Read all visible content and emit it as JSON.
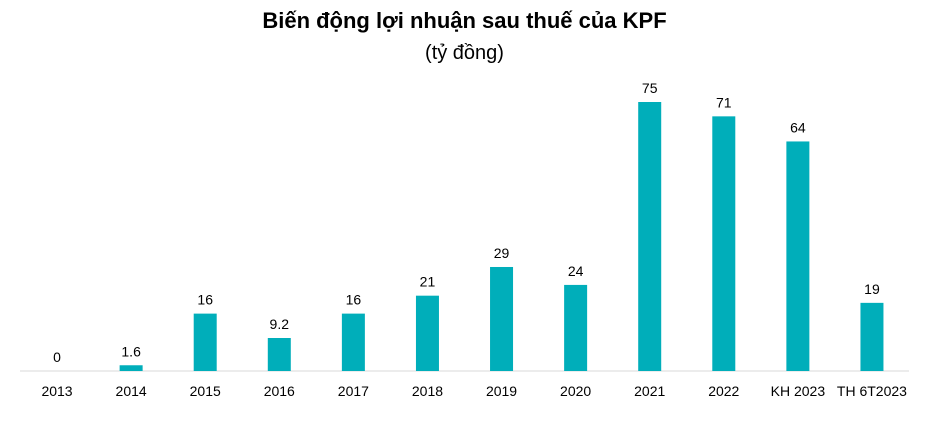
{
  "chart_data": {
    "type": "bar",
    "title": "Biến động lợi nhuận sau thuế của KPF",
    "subtitle": "(tỷ đồng)",
    "categories": [
      "2013",
      "2014",
      "2015",
      "2016",
      "2017",
      "2018",
      "2019",
      "2020",
      "2021",
      "2022",
      "KH 2023",
      "TH 6T2023"
    ],
    "values": [
      0,
      1.6,
      16,
      9.2,
      16,
      21,
      29,
      24,
      75,
      71,
      64,
      19
    ],
    "value_labels": [
      "0",
      "1.6",
      "16",
      "9.2",
      "16",
      "21",
      "29",
      "24",
      "75",
      "71",
      "64",
      "19"
    ],
    "bar_color": "#00AEBA",
    "ylim": [
      0,
      75
    ],
    "grid": false,
    "legend": "none"
  }
}
